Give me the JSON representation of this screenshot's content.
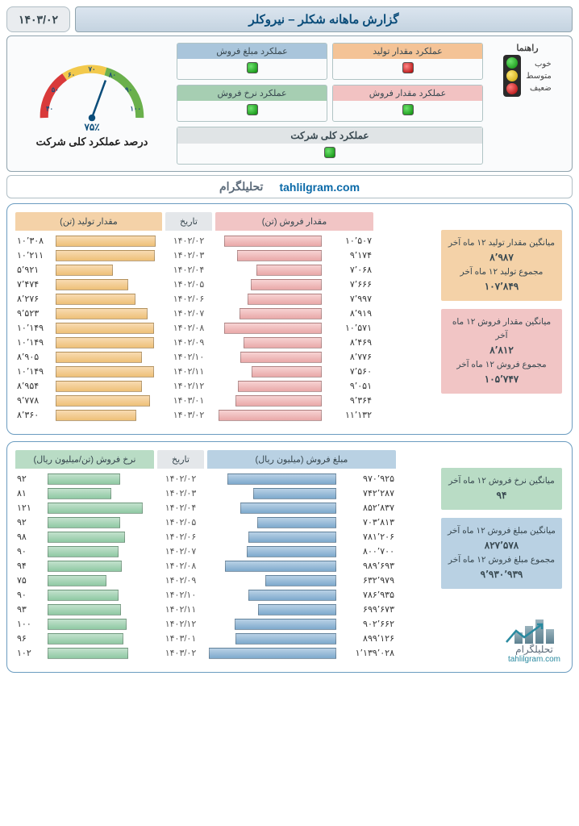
{
  "date_label": "۱۴۰۳/۰۲",
  "report_title": "گزارش ماهانه شکلر – نیروکلر",
  "gauge": {
    "caption": "درصد عملکرد کلی شرکت",
    "value_label": "۷۵٪",
    "value_percent": 75,
    "ticks": [
      "۴۰",
      "۵۰",
      "۶۰",
      "۷۰",
      "۸۰",
      "۹۰",
      "۱۰۰"
    ],
    "arc_colors": {
      "red": "#d93a3a",
      "yellow": "#f2c94c",
      "green": "#6ab04c"
    }
  },
  "metrics": {
    "production_qty": {
      "label": "عملکرد مقدار تولید",
      "status": "red",
      "hdr_class": "hdr-orange"
    },
    "sales_amount": {
      "label": "عملکرد مبلغ فروش",
      "status": "green",
      "hdr_class": "hdr-blue"
    },
    "sales_qty": {
      "label": "عملکرد مقدار فروش",
      "status": "green",
      "hdr_class": "hdr-pink"
    },
    "sales_rate": {
      "label": "عملکرد نرخ فروش",
      "status": "green",
      "hdr_class": "hdr-green"
    },
    "overall": {
      "label": "عملکرد کلی شرکت",
      "status": "green"
    }
  },
  "legend": {
    "title": "راهنما",
    "good": "خوب",
    "mid": "متوسط",
    "bad": "ضعیف"
  },
  "watermark": {
    "url": "tahlilgram.com",
    "fa": "تحلیلگرام"
  },
  "panel1": {
    "headers": {
      "production": "مقدار تولید (تن)",
      "date": "تاریخ",
      "sales": "مقدار فروش (تن)"
    },
    "header_colors": {
      "production": "#f4d2a8",
      "date": "#e4e7ea",
      "sales": "#f1c5c5"
    },
    "max_production": 11000,
    "max_sales": 11500,
    "rows": [
      {
        "date": "۱۴۰۲/۰۲",
        "production": "۱۰٬۳۰۸",
        "production_n": 10308,
        "sales": "۱۰٬۵۰۷",
        "sales_n": 10507
      },
      {
        "date": "۱۴۰۲/۰۳",
        "production": "۱۰٬۲۱۱",
        "production_n": 10211,
        "sales": "۹٬۱۷۴",
        "sales_n": 9174
      },
      {
        "date": "۱۴۰۲/۰۴",
        "production": "۵٬۹۲۱",
        "production_n": 5921,
        "sales": "۷٬۰۶۸",
        "sales_n": 7068
      },
      {
        "date": "۱۴۰۲/۰۵",
        "production": "۷٬۴۷۴",
        "production_n": 7474,
        "sales": "۷٬۶۶۶",
        "sales_n": 7666
      },
      {
        "date": "۱۴۰۲/۰۶",
        "production": "۸٬۲۷۶",
        "production_n": 8276,
        "sales": "۷٬۹۹۷",
        "sales_n": 7997
      },
      {
        "date": "۱۴۰۲/۰۷",
        "production": "۹٬۵۲۳",
        "production_n": 9523,
        "sales": "۸٬۹۱۹",
        "sales_n": 8919
      },
      {
        "date": "۱۴۰۲/۰۸",
        "production": "۱۰٬۱۴۹",
        "production_n": 10149,
        "sales": "۱۰٬۵۷۱",
        "sales_n": 10571
      },
      {
        "date": "۱۴۰۲/۰۹",
        "production": "۱۰٬۱۴۹",
        "production_n": 10149,
        "sales": "۸٬۴۶۹",
        "sales_n": 8469
      },
      {
        "date": "۱۴۰۲/۱۰",
        "production": "۸٬۹۰۵",
        "production_n": 8905,
        "sales": "۸٬۷۷۶",
        "sales_n": 8776
      },
      {
        "date": "۱۴۰۲/۱۱",
        "production": "۱۰٬۱۴۹",
        "production_n": 10149,
        "sales": "۷٬۵۶۰",
        "sales_n": 7560
      },
      {
        "date": "۱۴۰۲/۱۲",
        "production": "۸٬۹۵۴",
        "production_n": 8954,
        "sales": "۹٬۰۵۱",
        "sales_n": 9051
      },
      {
        "date": "۱۴۰۳/۰۱",
        "production": "۹٬۷۷۸",
        "production_n": 9778,
        "sales": "۹٬۳۶۴",
        "sales_n": 9364
      },
      {
        "date": "۱۴۰۳/۰۲",
        "production": "۸٬۳۶۰",
        "production_n": 8360,
        "sales": "۱۱٬۱۳۲",
        "sales_n": 11132
      }
    ],
    "side": {
      "prod_avg_label": "میانگین مقدار تولید ۱۲ ماه آخر",
      "prod_avg": "۸٬۹۸۷",
      "prod_sum_label": "مجموع تولید ۱۲ ماه آخر",
      "prod_sum": "۱۰۷٬۸۴۹",
      "sales_avg_label": "میانگین مقدار فروش ۱۲ ماه آخر",
      "sales_avg": "۸٬۸۱۲",
      "sales_sum_label": "مجموع فروش ۱۲ ماه آخر",
      "sales_sum": "۱۰۵٬۷۴۷"
    }
  },
  "panel2": {
    "headers": {
      "rate": "نرخ فروش (تن/میلیون ریال)",
      "date": "تاریخ",
      "amount": "مبلغ فروش (میلیون ریال)"
    },
    "header_colors": {
      "rate": "#b9dcc5",
      "date": "#e4e7ea",
      "amount": "#b9d1e3"
    },
    "max_rate": 135,
    "max_amount": 1150000,
    "rows": [
      {
        "date": "۱۴۰۲/۰۲",
        "rate": "۹۲",
        "rate_n": 92,
        "amount": "۹۷۰٬۹۲۵",
        "amount_n": 970925
      },
      {
        "date": "۱۴۰۲/۰۳",
        "rate": "۸۱",
        "rate_n": 81,
        "amount": "۷۴۲٬۲۸۷",
        "amount_n": 742287
      },
      {
        "date": "۱۴۰۲/۰۴",
        "rate": "۱۲۱",
        "rate_n": 121,
        "amount": "۸۵۲٬۸۳۷",
        "amount_n": 852837
      },
      {
        "date": "۱۴۰۲/۰۵",
        "rate": "۹۲",
        "rate_n": 92,
        "amount": "۷۰۳٬۸۱۳",
        "amount_n": 703813
      },
      {
        "date": "۱۴۰۲/۰۶",
        "rate": "۹۸",
        "rate_n": 98,
        "amount": "۷۸۱٬۲۰۶",
        "amount_n": 781206
      },
      {
        "date": "۱۴۰۲/۰۷",
        "rate": "۹۰",
        "rate_n": 90,
        "amount": "۸۰۰٬۷۰۰",
        "amount_n": 800700
      },
      {
        "date": "۱۴۰۲/۰۸",
        "rate": "۹۴",
        "rate_n": 94,
        "amount": "۹۸۹٬۶۹۳",
        "amount_n": 989693
      },
      {
        "date": "۱۴۰۲/۰۹",
        "rate": "۷۵",
        "rate_n": 75,
        "amount": "۶۳۲٬۹۷۹",
        "amount_n": 632979
      },
      {
        "date": "۱۴۰۲/۱۰",
        "rate": "۹۰",
        "rate_n": 90,
        "amount": "۷۸۶٬۹۳۵",
        "amount_n": 786935
      },
      {
        "date": "۱۴۰۲/۱۱",
        "rate": "۹۳",
        "rate_n": 93,
        "amount": "۶۹۹٬۶۷۳",
        "amount_n": 699673
      },
      {
        "date": "۱۴۰۲/۱۲",
        "rate": "۱۰۰",
        "rate_n": 100,
        "amount": "۹۰۲٬۶۶۲",
        "amount_n": 902662
      },
      {
        "date": "۱۴۰۳/۰۱",
        "rate": "۹۶",
        "rate_n": 96,
        "amount": "۸۹۹٬۱۲۶",
        "amount_n": 899126
      },
      {
        "date": "۱۴۰۳/۰۲",
        "rate": "۱۰۲",
        "rate_n": 102,
        "amount": "۱٬۱۳۹٬۰۲۸",
        "amount_n": 1139028
      }
    ],
    "side": {
      "rate_avg_label": "میانگین نرخ فروش ۱۲ ماه آخر",
      "rate_avg": "۹۴",
      "amount_avg_label": "میانگین مبلغ فروش ۱۲ ماه آخر",
      "amount_avg": "۸۲۷٬۵۷۸",
      "amount_sum_label": "مجموع مبلغ فروش ۱۲ ماه آخر",
      "amount_sum": "۹٬۹۳۰٬۹۳۹"
    }
  },
  "logo": {
    "fa": "تحلیلگرام",
    "url": "tahlilgram.com"
  }
}
